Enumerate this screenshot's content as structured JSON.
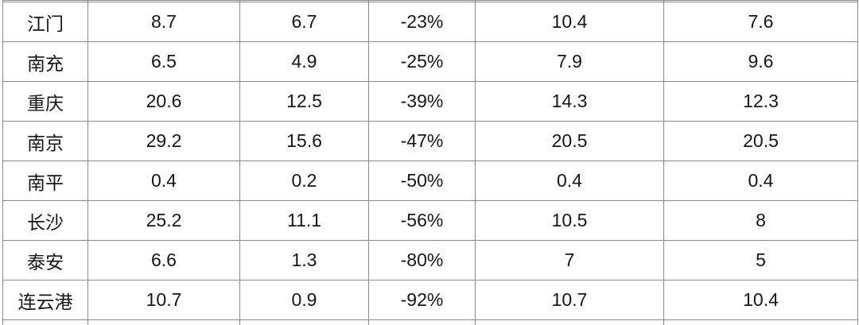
{
  "colors": {
    "background": "#ffffff",
    "text": "#161616",
    "grid_border": "#8a8a8a",
    "change_green": "#27a95c"
  },
  "chart_data": {
    "type": "table",
    "rows": [
      [
        "江门",
        "8.7",
        "6.7",
        "-23%",
        "10.4",
        "7.6"
      ],
      [
        "南充",
        "6.5",
        "4.9",
        "-25%",
        "7.9",
        "9.6"
      ],
      [
        "重庆",
        "20.6",
        "12.5",
        "-39%",
        "14.3",
        "12.3"
      ],
      [
        "南京",
        "29.2",
        "15.6",
        "-47%",
        "20.5",
        "20.5"
      ],
      [
        "南平",
        "0.4",
        "0.2",
        "-50%",
        "0.4",
        "0.4"
      ],
      [
        "长沙",
        "25.2",
        "11.1",
        "-56%",
        "10.5",
        "8"
      ],
      [
        "泰安",
        "6.6",
        "1.3",
        "-80%",
        "7",
        "5"
      ],
      [
        "连云港",
        "10.7",
        "0.9",
        "-92%",
        "10.7",
        "10.4"
      ]
    ],
    "change_column_index": 3,
    "green_change_row_indices": [
      3,
      4,
      5,
      6,
      7
    ],
    "layout_hints": {
      "grid_on": true,
      "cropped_top_row": true,
      "cropped_bottom_row": true
    }
  }
}
